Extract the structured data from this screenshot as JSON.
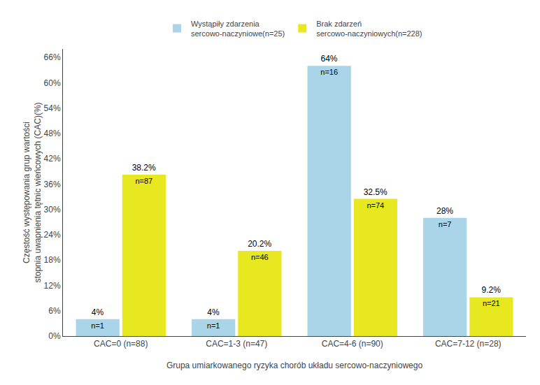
{
  "chart_data": {
    "type": "bar",
    "categories": [
      "CAC=0 (n=88)",
      "CAC=1-3 (n=47)",
      "CAC=4-6 (n=90)",
      "CAC=7-12 (n=28)"
    ],
    "series": [
      {
        "name": "Wystąpiły zdarzenia\nsercowo-naczyniowe(n=25)",
        "color": "#aad4e8",
        "values": [
          4,
          4,
          64,
          28
        ],
        "value_labels": [
          "4%",
          "4%",
          "64%",
          "28%"
        ],
        "n_labels": [
          "n=1",
          "n=1",
          "n=16",
          "n=7"
        ]
      },
      {
        "name": "Brak zdarzeń\nsercowo-naczyniowych(n=228)",
        "color": "#e8e820",
        "values": [
          38.2,
          20.2,
          32.5,
          9.2
        ],
        "value_labels": [
          "38.2%",
          "20.2%",
          "32.5%",
          "9.2%"
        ],
        "n_labels": [
          "n=87",
          "n=46",
          "n=74",
          "n=21"
        ]
      }
    ],
    "xlabel": "Grupa umiarkowanego ryzyka chorób układu sercowo-naczyniowego",
    "ylabel": "Częstość występowania grup wartości\nstopnia uwapnienia tętnic wieńcowych (CAC)(%)",
    "ylim": [
      0,
      68
    ],
    "yticks": [
      {
        "value": 0,
        "label": "0%"
      },
      {
        "value": 6,
        "label": "6%"
      },
      {
        "value": 12,
        "label": "12%"
      },
      {
        "value": 18,
        "label": "18%"
      },
      {
        "value": 24,
        "label": "24%"
      },
      {
        "value": 30,
        "label": "30%"
      },
      {
        "value": 36,
        "label": "36%"
      },
      {
        "value": 42,
        "label": "42%"
      },
      {
        "value": 48,
        "label": "48%"
      },
      {
        "value": 54,
        "label": "54%"
      },
      {
        "value": 60,
        "label": "60%"
      },
      {
        "value": 66,
        "label": "66%"
      }
    ],
    "grid": false,
    "legend": "top",
    "data_labels": true
  }
}
